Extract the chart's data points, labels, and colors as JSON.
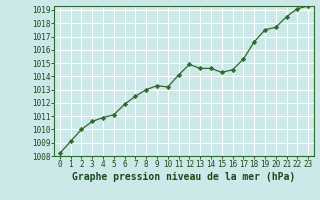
{
  "x": [
    0,
    1,
    2,
    3,
    4,
    5,
    6,
    7,
    8,
    9,
    10,
    11,
    12,
    13,
    14,
    15,
    16,
    17,
    18,
    19,
    20,
    21,
    22,
    23
  ],
  "y": [
    1008.2,
    1009.1,
    1010.0,
    1010.6,
    1010.9,
    1011.1,
    1011.9,
    1012.5,
    1013.0,
    1013.3,
    1013.2,
    1014.1,
    1014.9,
    1014.6,
    1014.6,
    1014.3,
    1014.5,
    1015.3,
    1016.6,
    1017.5,
    1017.7,
    1018.5,
    1019.1,
    1019.3
  ],
  "line_color": "#2d6a2d",
  "marker": "D",
  "marker_size": 2.2,
  "line_width": 0.9,
  "bg_color": "#cce8e8",
  "plot_bg_color": "#cce8e8",
  "grid_color": "#ffffff",
  "xlabel": "Graphe pression niveau de la mer (hPa)",
  "xlabel_color": "#1a4a1a",
  "xlabel_fontsize": 7,
  "ylim_min": 1008,
  "ylim_max": 1019,
  "ytick_step": 1,
  "xtick_labels": [
    "0",
    "1",
    "2",
    "3",
    "4",
    "5",
    "6",
    "7",
    "8",
    "9",
    "10",
    "11",
    "12",
    "13",
    "14",
    "15",
    "16",
    "17",
    "18",
    "19",
    "20",
    "21",
    "22",
    "23"
  ],
  "tick_color": "#1a4a1a",
  "tick_fontsize": 5.5,
  "border_color": "#2d6a2d"
}
